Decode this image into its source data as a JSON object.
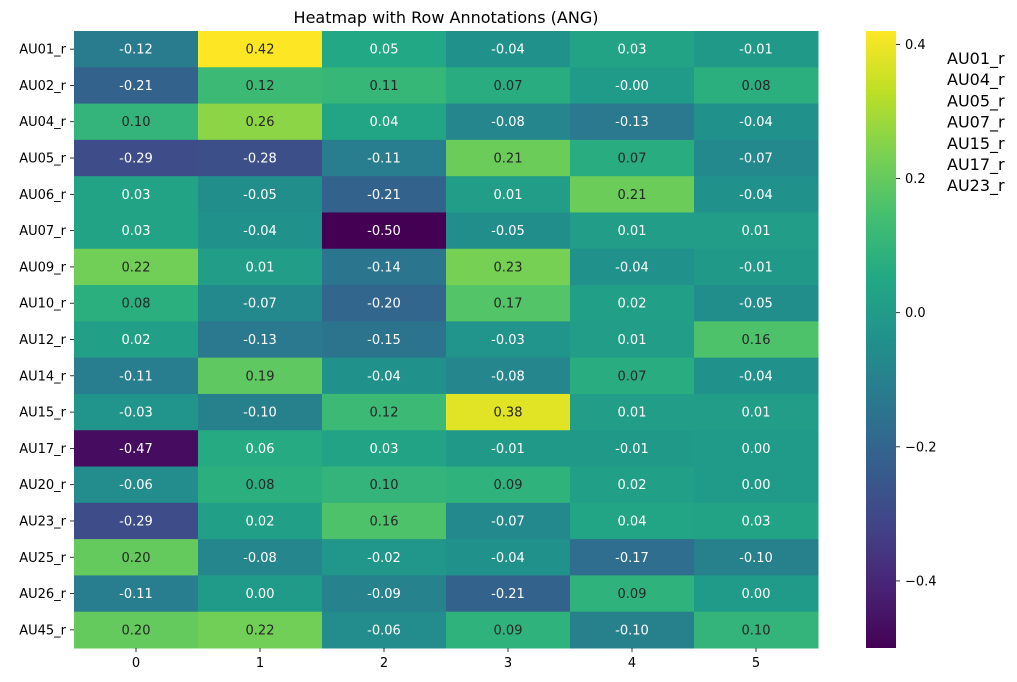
{
  "chart_data": {
    "type": "heatmap",
    "title": "Heatmap with Row Annotations (ANG)",
    "xlabel": "",
    "ylabel": "",
    "colormap": "viridis",
    "vmin": -0.5,
    "vmax": 0.42,
    "x_labels": [
      "0",
      "1",
      "2",
      "3",
      "4",
      "5"
    ],
    "y_labels": [
      "AU01_r",
      "AU02_r",
      "AU04_r",
      "AU05_r",
      "AU06_r",
      "AU07_r",
      "AU09_r",
      "AU10_r",
      "AU12_r",
      "AU14_r",
      "AU15_r",
      "AU17_r",
      "AU20_r",
      "AU23_r",
      "AU25_r",
      "AU26_r",
      "AU45_r"
    ],
    "values": [
      [
        -0.12,
        0.42,
        0.05,
        -0.04,
        0.03,
        -0.01
      ],
      [
        -0.21,
        0.12,
        0.11,
        0.07,
        -0.0,
        0.08
      ],
      [
        0.1,
        0.26,
        0.04,
        -0.08,
        -0.13,
        -0.04
      ],
      [
        -0.29,
        -0.28,
        -0.11,
        0.21,
        0.07,
        -0.07
      ],
      [
        0.03,
        -0.05,
        -0.21,
        0.01,
        0.21,
        -0.04
      ],
      [
        0.03,
        -0.04,
        -0.5,
        -0.05,
        0.01,
        0.01
      ],
      [
        0.22,
        0.01,
        -0.14,
        0.23,
        -0.04,
        -0.01
      ],
      [
        0.08,
        -0.07,
        -0.2,
        0.17,
        0.02,
        -0.05
      ],
      [
        0.02,
        -0.13,
        -0.15,
        -0.03,
        0.01,
        0.16
      ],
      [
        -0.11,
        0.19,
        -0.04,
        -0.08,
        0.07,
        -0.04
      ],
      [
        -0.03,
        -0.1,
        0.12,
        0.38,
        0.01,
        0.01
      ],
      [
        -0.47,
        0.06,
        0.03,
        -0.01,
        -0.01,
        0.0
      ],
      [
        -0.06,
        0.08,
        0.1,
        0.09,
        0.02,
        0.0
      ],
      [
        -0.29,
        0.02,
        0.16,
        -0.07,
        0.04,
        0.03
      ],
      [
        0.2,
        -0.08,
        -0.02,
        -0.04,
        -0.17,
        -0.1
      ],
      [
        -0.11,
        0.0,
        -0.09,
        -0.21,
        0.09,
        0.0
      ],
      [
        0.2,
        0.22,
        -0.06,
        0.09,
        -0.1,
        0.1
      ]
    ],
    "cell_labels": [
      [
        "-0.12",
        "0.42",
        "0.05",
        "-0.04",
        "0.03",
        "-0.01"
      ],
      [
        "-0.21",
        "0.12",
        "0.11",
        "0.07",
        "-0.00",
        "0.08"
      ],
      [
        "0.10",
        "0.26",
        "0.04",
        "-0.08",
        "-0.13",
        "-0.04"
      ],
      [
        "-0.29",
        "-0.28",
        "-0.11",
        "0.21",
        "0.07",
        "-0.07"
      ],
      [
        "0.03",
        "-0.05",
        "-0.21",
        "0.01",
        "0.21",
        "-0.04"
      ],
      [
        "0.03",
        "-0.04",
        "-0.50",
        "-0.05",
        "0.01",
        "0.01"
      ],
      [
        "0.22",
        "0.01",
        "-0.14",
        "0.23",
        "-0.04",
        "-0.01"
      ],
      [
        "0.08",
        "-0.07",
        "-0.20",
        "0.17",
        "0.02",
        "-0.05"
      ],
      [
        "0.02",
        "-0.13",
        "-0.15",
        "-0.03",
        "0.01",
        "0.16"
      ],
      [
        "-0.11",
        "0.19",
        "-0.04",
        "-0.08",
        "0.07",
        "-0.04"
      ],
      [
        "-0.03",
        "-0.10",
        "0.12",
        "0.38",
        "0.01",
        "0.01"
      ],
      [
        "-0.47",
        "0.06",
        "0.03",
        "-0.01",
        "-0.01",
        "0.00"
      ],
      [
        "-0.06",
        "0.08",
        "0.10",
        "0.09",
        "0.02",
        "0.00"
      ],
      [
        "-0.29",
        "0.02",
        "0.16",
        "-0.07",
        "0.04",
        "0.03"
      ],
      [
        "0.20",
        "-0.08",
        "-0.02",
        "-0.04",
        "-0.17",
        "-0.10"
      ],
      [
        "-0.11",
        "0.00",
        "-0.09",
        "-0.21",
        "0.09",
        "0.00"
      ],
      [
        "0.20",
        "0.22",
        "-0.06",
        "0.09",
        "-0.10",
        "0.10"
      ]
    ],
    "colorbar": {
      "ticks": [
        -0.4,
        -0.2,
        0.0,
        0.2,
        0.4
      ],
      "tick_labels": [
        "−0.4",
        "−0.2",
        "0.0",
        "0.2",
        "0.4"
      ]
    },
    "row_annotations": [
      "AU01_r",
      "AU04_r",
      "AU05_r",
      "AU07_r",
      "AU15_r",
      "AU17_r",
      "AU23_r"
    ],
    "grid": false
  }
}
